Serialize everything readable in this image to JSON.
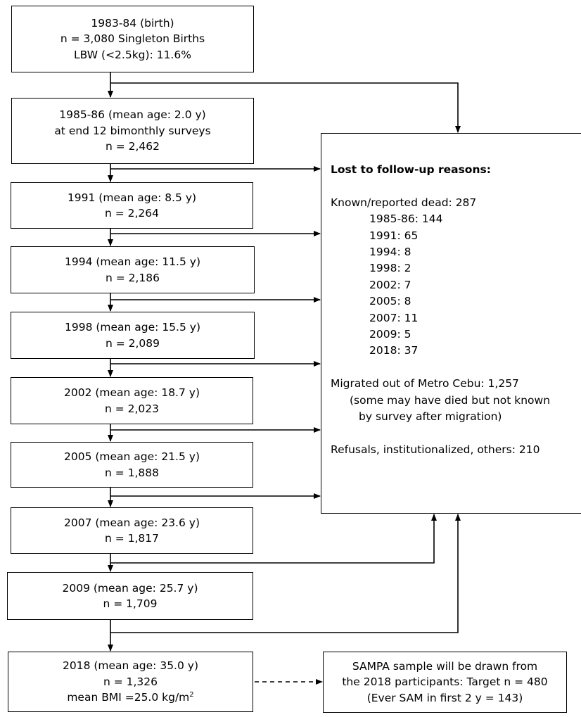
{
  "stages": [
    {
      "lines": [
        "1983-84 (birth)",
        "n = 3,080 Singleton Births",
        "LBW (<2.5kg): 11.6%"
      ]
    },
    {
      "lines": [
        "1985-86 (mean age: 2.0 y)",
        "at end 12 bimonthly surveys",
        "n = 2,462"
      ]
    },
    {
      "lines": [
        "1991 (mean age: 8.5 y)",
        "n = 2,264"
      ]
    },
    {
      "lines": [
        "1994 (mean age: 11.5 y)",
        "n = 2,186"
      ]
    },
    {
      "lines": [
        "1998 (mean age: 15.5 y)",
        "n = 2,089"
      ]
    },
    {
      "lines": [
        "2002 (mean age: 18.7 y)",
        "n = 2,023"
      ]
    },
    {
      "lines": [
        "2005 (mean age: 21.5 y)",
        "n = 1,888"
      ]
    },
    {
      "lines": [
        "2007 (mean age: 23.6 y)",
        "n = 1,817"
      ]
    },
    {
      "lines": [
        "2009 (mean age: 25.7 y)",
        "n = 1,709"
      ]
    },
    {
      "lines": [
        "2018 (mean age:  35.0 y)",
        "n = 1,326"
      ],
      "bmi_text": "mean BMI =25.0 kg/m",
      "bmi_sup": "2"
    }
  ],
  "lost_to_follow_up": {
    "title": "Lost to follow-up reasons:",
    "dead_heading": "Known/reported dead: 287",
    "dead_by_wave": [
      "1985-86: 144",
      "1991: 65",
      "1994: 8",
      "1998: 2",
      "2002: 7",
      "2005: 8",
      "2007: 11",
      "2009: 5",
      "2018: 37"
    ],
    "migrated_heading": "Migrated out of Metro Cebu: 1,257",
    "migrated_note_1": "(some may have died but not known",
    "migrated_note_2": "by survey after migration)",
    "refusals": "Refusals, institutionalized, others: 210"
  },
  "sampa": {
    "line1": "SAMPA sample will be drawn from",
    "line2": "the 2018 participants: Target n = 480",
    "line3": "(Ever SAM in first 2 y = 143)"
  }
}
